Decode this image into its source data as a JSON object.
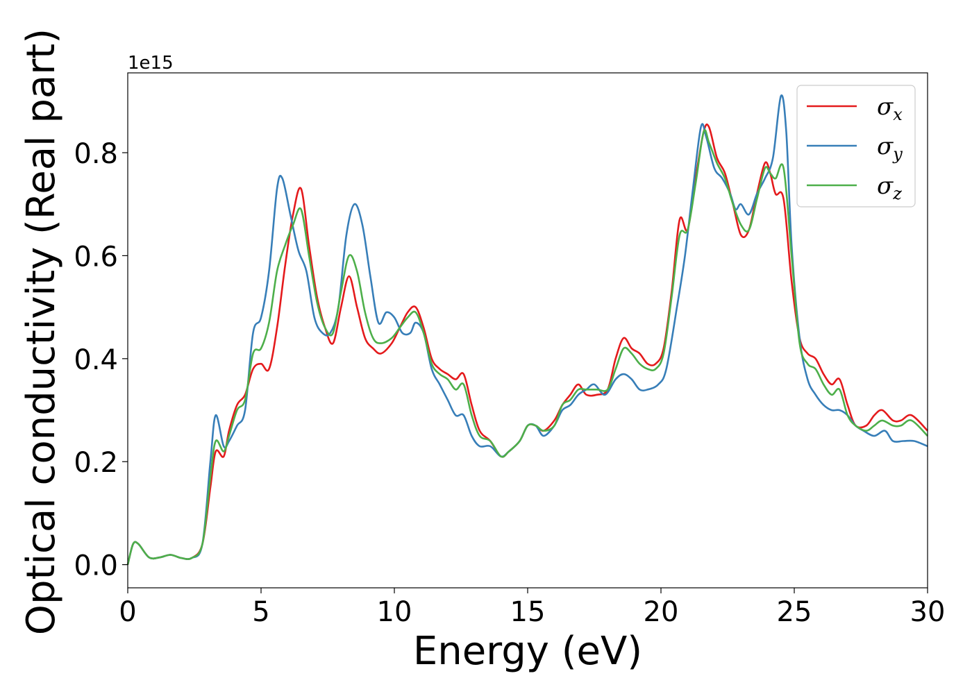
{
  "chart_data": {
    "type": "line",
    "xlabel": "Energy (eV)",
    "ylabel": "Optical conductivity (Real part)",
    "y_offset_label": "1e15",
    "xlim": [
      0,
      30
    ],
    "ylim": [
      -0.045,
      0.955
    ],
    "x_ticks": [
      0,
      5,
      10,
      15,
      20,
      25,
      30
    ],
    "x_tick_labels": [
      "0",
      "5",
      "10",
      "15",
      "20",
      "25",
      "30"
    ],
    "y_ticks": [
      0.0,
      0.2,
      0.4,
      0.6,
      0.8
    ],
    "y_tick_labels": [
      "0.0",
      "0.2",
      "0.4",
      "0.6",
      "0.8"
    ],
    "grid": false,
    "legend_position": "top-right",
    "series": [
      {
        "name": "σx",
        "symbol": "σ",
        "subscript": "x",
        "color": "#e41a1c",
        "points": [
          [
            0,
            0
          ],
          [
            0.2,
            0.04
          ],
          [
            0.4,
            0.04
          ],
          [
            0.8,
            0.014
          ],
          [
            1.2,
            0.014
          ],
          [
            1.6,
            0.019
          ],
          [
            2.0,
            0.013
          ],
          [
            2.4,
            0.013
          ],
          [
            2.8,
            0.04
          ],
          [
            3.1,
            0.15
          ],
          [
            3.3,
            0.22
          ],
          [
            3.6,
            0.21
          ],
          [
            3.8,
            0.26
          ],
          [
            4.1,
            0.31
          ],
          [
            4.4,
            0.33
          ],
          [
            4.7,
            0.38
          ],
          [
            5.0,
            0.39
          ],
          [
            5.3,
            0.38
          ],
          [
            5.6,
            0.46
          ],
          [
            5.9,
            0.58
          ],
          [
            6.2,
            0.68
          ],
          [
            6.5,
            0.73
          ],
          [
            6.8,
            0.62
          ],
          [
            7.1,
            0.52
          ],
          [
            7.4,
            0.46
          ],
          [
            7.7,
            0.43
          ],
          [
            8.0,
            0.5
          ],
          [
            8.3,
            0.56
          ],
          [
            8.6,
            0.5
          ],
          [
            8.9,
            0.44
          ],
          [
            9.2,
            0.42
          ],
          [
            9.5,
            0.41
          ],
          [
            9.9,
            0.43
          ],
          [
            10.2,
            0.46
          ],
          [
            10.5,
            0.49
          ],
          [
            10.8,
            0.5
          ],
          [
            11.1,
            0.46
          ],
          [
            11.4,
            0.4
          ],
          [
            11.7,
            0.38
          ],
          [
            12.0,
            0.37
          ],
          [
            12.3,
            0.36
          ],
          [
            12.6,
            0.37
          ],
          [
            12.9,
            0.31
          ],
          [
            13.2,
            0.26
          ],
          [
            13.6,
            0.24
          ],
          [
            14.0,
            0.21
          ],
          [
            14.3,
            0.22
          ],
          [
            14.7,
            0.24
          ],
          [
            15.0,
            0.27
          ],
          [
            15.3,
            0.27
          ],
          [
            15.6,
            0.26
          ],
          [
            16.0,
            0.28
          ],
          [
            16.3,
            0.31
          ],
          [
            16.6,
            0.33
          ],
          [
            16.9,
            0.35
          ],
          [
            17.2,
            0.33
          ],
          [
            17.6,
            0.33
          ],
          [
            18.0,
            0.34
          ],
          [
            18.3,
            0.4
          ],
          [
            18.6,
            0.44
          ],
          [
            18.9,
            0.42
          ],
          [
            19.2,
            0.41
          ],
          [
            19.5,
            0.39
          ],
          [
            19.8,
            0.39
          ],
          [
            20.1,
            0.42
          ],
          [
            20.4,
            0.53
          ],
          [
            20.7,
            0.67
          ],
          [
            21.0,
            0.65
          ],
          [
            21.3,
            0.75
          ],
          [
            21.6,
            0.84
          ],
          [
            21.8,
            0.85
          ],
          [
            22.1,
            0.79
          ],
          [
            22.4,
            0.76
          ],
          [
            22.7,
            0.7
          ],
          [
            23.0,
            0.64
          ],
          [
            23.3,
            0.65
          ],
          [
            23.6,
            0.72
          ],
          [
            23.9,
            0.78
          ],
          [
            24.1,
            0.76
          ],
          [
            24.3,
            0.72
          ],
          [
            24.6,
            0.71
          ],
          [
            24.9,
            0.55
          ],
          [
            25.2,
            0.44
          ],
          [
            25.5,
            0.41
          ],
          [
            25.8,
            0.4
          ],
          [
            26.1,
            0.37
          ],
          [
            26.4,
            0.35
          ],
          [
            26.7,
            0.36
          ],
          [
            27.0,
            0.31
          ],
          [
            27.3,
            0.27
          ],
          [
            27.7,
            0.27
          ],
          [
            28.0,
            0.29
          ],
          [
            28.3,
            0.3
          ],
          [
            28.7,
            0.28
          ],
          [
            29.0,
            0.28
          ],
          [
            29.4,
            0.29
          ],
          [
            30.0,
            0.26
          ]
        ]
      },
      {
        "name": "σy",
        "symbol": "σ",
        "subscript": "y",
        "color": "#377eb8",
        "points": [
          [
            0,
            0
          ],
          [
            0.2,
            0.04
          ],
          [
            0.4,
            0.04
          ],
          [
            0.8,
            0.014
          ],
          [
            1.2,
            0.014
          ],
          [
            1.6,
            0.019
          ],
          [
            2.0,
            0.013
          ],
          [
            2.4,
            0.013
          ],
          [
            2.8,
            0.04
          ],
          [
            3.1,
            0.2
          ],
          [
            3.3,
            0.29
          ],
          [
            3.6,
            0.23
          ],
          [
            3.8,
            0.24
          ],
          [
            4.1,
            0.27
          ],
          [
            4.4,
            0.3
          ],
          [
            4.7,
            0.45
          ],
          [
            5.0,
            0.48
          ],
          [
            5.3,
            0.57
          ],
          [
            5.6,
            0.73
          ],
          [
            5.8,
            0.75
          ],
          [
            6.1,
            0.68
          ],
          [
            6.4,
            0.61
          ],
          [
            6.7,
            0.57
          ],
          [
            7.0,
            0.48
          ],
          [
            7.3,
            0.45
          ],
          [
            7.6,
            0.45
          ],
          [
            7.9,
            0.5
          ],
          [
            8.2,
            0.64
          ],
          [
            8.5,
            0.7
          ],
          [
            8.8,
            0.66
          ],
          [
            9.1,
            0.56
          ],
          [
            9.4,
            0.47
          ],
          [
            9.7,
            0.49
          ],
          [
            10.0,
            0.48
          ],
          [
            10.3,
            0.45
          ],
          [
            10.6,
            0.45
          ],
          [
            10.8,
            0.47
          ],
          [
            11.1,
            0.45
          ],
          [
            11.4,
            0.38
          ],
          [
            11.7,
            0.35
          ],
          [
            12.0,
            0.32
          ],
          [
            12.3,
            0.29
          ],
          [
            12.6,
            0.29
          ],
          [
            12.9,
            0.25
          ],
          [
            13.2,
            0.23
          ],
          [
            13.6,
            0.23
          ],
          [
            14.0,
            0.21
          ],
          [
            14.3,
            0.22
          ],
          [
            14.7,
            0.24
          ],
          [
            15.0,
            0.27
          ],
          [
            15.3,
            0.27
          ],
          [
            15.6,
            0.25
          ],
          [
            16.0,
            0.27
          ],
          [
            16.3,
            0.3
          ],
          [
            16.6,
            0.31
          ],
          [
            16.9,
            0.33
          ],
          [
            17.2,
            0.34
          ],
          [
            17.5,
            0.35
          ],
          [
            17.9,
            0.33
          ],
          [
            18.3,
            0.36
          ],
          [
            18.6,
            0.37
          ],
          [
            18.9,
            0.36
          ],
          [
            19.2,
            0.34
          ],
          [
            19.5,
            0.34
          ],
          [
            19.9,
            0.35
          ],
          [
            20.2,
            0.38
          ],
          [
            20.6,
            0.5
          ],
          [
            20.9,
            0.6
          ],
          [
            21.2,
            0.73
          ],
          [
            21.5,
            0.85
          ],
          [
            21.7,
            0.83
          ],
          [
            22.0,
            0.77
          ],
          [
            22.3,
            0.75
          ],
          [
            22.6,
            0.72
          ],
          [
            22.8,
            0.69
          ],
          [
            23.0,
            0.7
          ],
          [
            23.3,
            0.68
          ],
          [
            23.6,
            0.72
          ],
          [
            23.9,
            0.75
          ],
          [
            24.2,
            0.79
          ],
          [
            24.5,
            0.91
          ],
          [
            24.7,
            0.84
          ],
          [
            24.9,
            0.62
          ],
          [
            25.2,
            0.44
          ],
          [
            25.5,
            0.36
          ],
          [
            25.8,
            0.33
          ],
          [
            26.1,
            0.31
          ],
          [
            26.4,
            0.3
          ],
          [
            26.7,
            0.3
          ],
          [
            27.0,
            0.29
          ],
          [
            27.3,
            0.27
          ],
          [
            27.6,
            0.26
          ],
          [
            28.0,
            0.25
          ],
          [
            28.4,
            0.26
          ],
          [
            28.7,
            0.24
          ],
          [
            29.1,
            0.24
          ],
          [
            29.5,
            0.24
          ],
          [
            30.0,
            0.23
          ]
        ]
      },
      {
        "name": "σz",
        "symbol": "σ",
        "subscript": "z",
        "color": "#4daf4a",
        "points": [
          [
            0,
            0
          ],
          [
            0.2,
            0.04
          ],
          [
            0.4,
            0.04
          ],
          [
            0.8,
            0.014
          ],
          [
            1.2,
            0.014
          ],
          [
            1.6,
            0.019
          ],
          [
            2.0,
            0.013
          ],
          [
            2.4,
            0.013
          ],
          [
            2.8,
            0.04
          ],
          [
            3.1,
            0.17
          ],
          [
            3.3,
            0.24
          ],
          [
            3.6,
            0.22
          ],
          [
            3.8,
            0.25
          ],
          [
            4.1,
            0.3
          ],
          [
            4.4,
            0.32
          ],
          [
            4.7,
            0.41
          ],
          [
            5.0,
            0.42
          ],
          [
            5.3,
            0.47
          ],
          [
            5.6,
            0.57
          ],
          [
            5.9,
            0.62
          ],
          [
            6.2,
            0.66
          ],
          [
            6.5,
            0.69
          ],
          [
            6.8,
            0.6
          ],
          [
            7.1,
            0.51
          ],
          [
            7.4,
            0.46
          ],
          [
            7.7,
            0.45
          ],
          [
            8.0,
            0.53
          ],
          [
            8.3,
            0.6
          ],
          [
            8.6,
            0.57
          ],
          [
            8.9,
            0.49
          ],
          [
            9.2,
            0.44
          ],
          [
            9.5,
            0.43
          ],
          [
            9.9,
            0.44
          ],
          [
            10.2,
            0.46
          ],
          [
            10.5,
            0.48
          ],
          [
            10.8,
            0.49
          ],
          [
            11.1,
            0.45
          ],
          [
            11.4,
            0.39
          ],
          [
            11.7,
            0.37
          ],
          [
            12.0,
            0.36
          ],
          [
            12.3,
            0.34
          ],
          [
            12.6,
            0.35
          ],
          [
            12.9,
            0.29
          ],
          [
            13.2,
            0.25
          ],
          [
            13.6,
            0.24
          ],
          [
            14.0,
            0.21
          ],
          [
            14.3,
            0.22
          ],
          [
            14.7,
            0.24
          ],
          [
            15.0,
            0.27
          ],
          [
            15.3,
            0.27
          ],
          [
            15.6,
            0.26
          ],
          [
            16.0,
            0.27
          ],
          [
            16.3,
            0.31
          ],
          [
            16.6,
            0.32
          ],
          [
            16.9,
            0.34
          ],
          [
            17.2,
            0.34
          ],
          [
            17.6,
            0.34
          ],
          [
            18.0,
            0.34
          ],
          [
            18.3,
            0.38
          ],
          [
            18.6,
            0.42
          ],
          [
            18.9,
            0.41
          ],
          [
            19.2,
            0.39
          ],
          [
            19.5,
            0.38
          ],
          [
            19.8,
            0.38
          ],
          [
            20.1,
            0.41
          ],
          [
            20.4,
            0.52
          ],
          [
            20.7,
            0.64
          ],
          [
            21.0,
            0.65
          ],
          [
            21.3,
            0.74
          ],
          [
            21.6,
            0.84
          ],
          [
            21.8,
            0.82
          ],
          [
            22.1,
            0.78
          ],
          [
            22.4,
            0.75
          ],
          [
            22.7,
            0.7
          ],
          [
            23.0,
            0.66
          ],
          [
            23.3,
            0.65
          ],
          [
            23.6,
            0.71
          ],
          [
            23.9,
            0.77
          ],
          [
            24.1,
            0.76
          ],
          [
            24.3,
            0.75
          ],
          [
            24.6,
            0.77
          ],
          [
            24.9,
            0.6
          ],
          [
            25.2,
            0.43
          ],
          [
            25.5,
            0.39
          ],
          [
            25.8,
            0.38
          ],
          [
            26.1,
            0.35
          ],
          [
            26.4,
            0.33
          ],
          [
            26.7,
            0.34
          ],
          [
            27.0,
            0.29
          ],
          [
            27.3,
            0.27
          ],
          [
            27.7,
            0.26
          ],
          [
            28.0,
            0.27
          ],
          [
            28.3,
            0.28
          ],
          [
            28.7,
            0.27
          ],
          [
            29.0,
            0.27
          ],
          [
            29.4,
            0.28
          ],
          [
            30.0,
            0.25
          ]
        ]
      }
    ]
  }
}
